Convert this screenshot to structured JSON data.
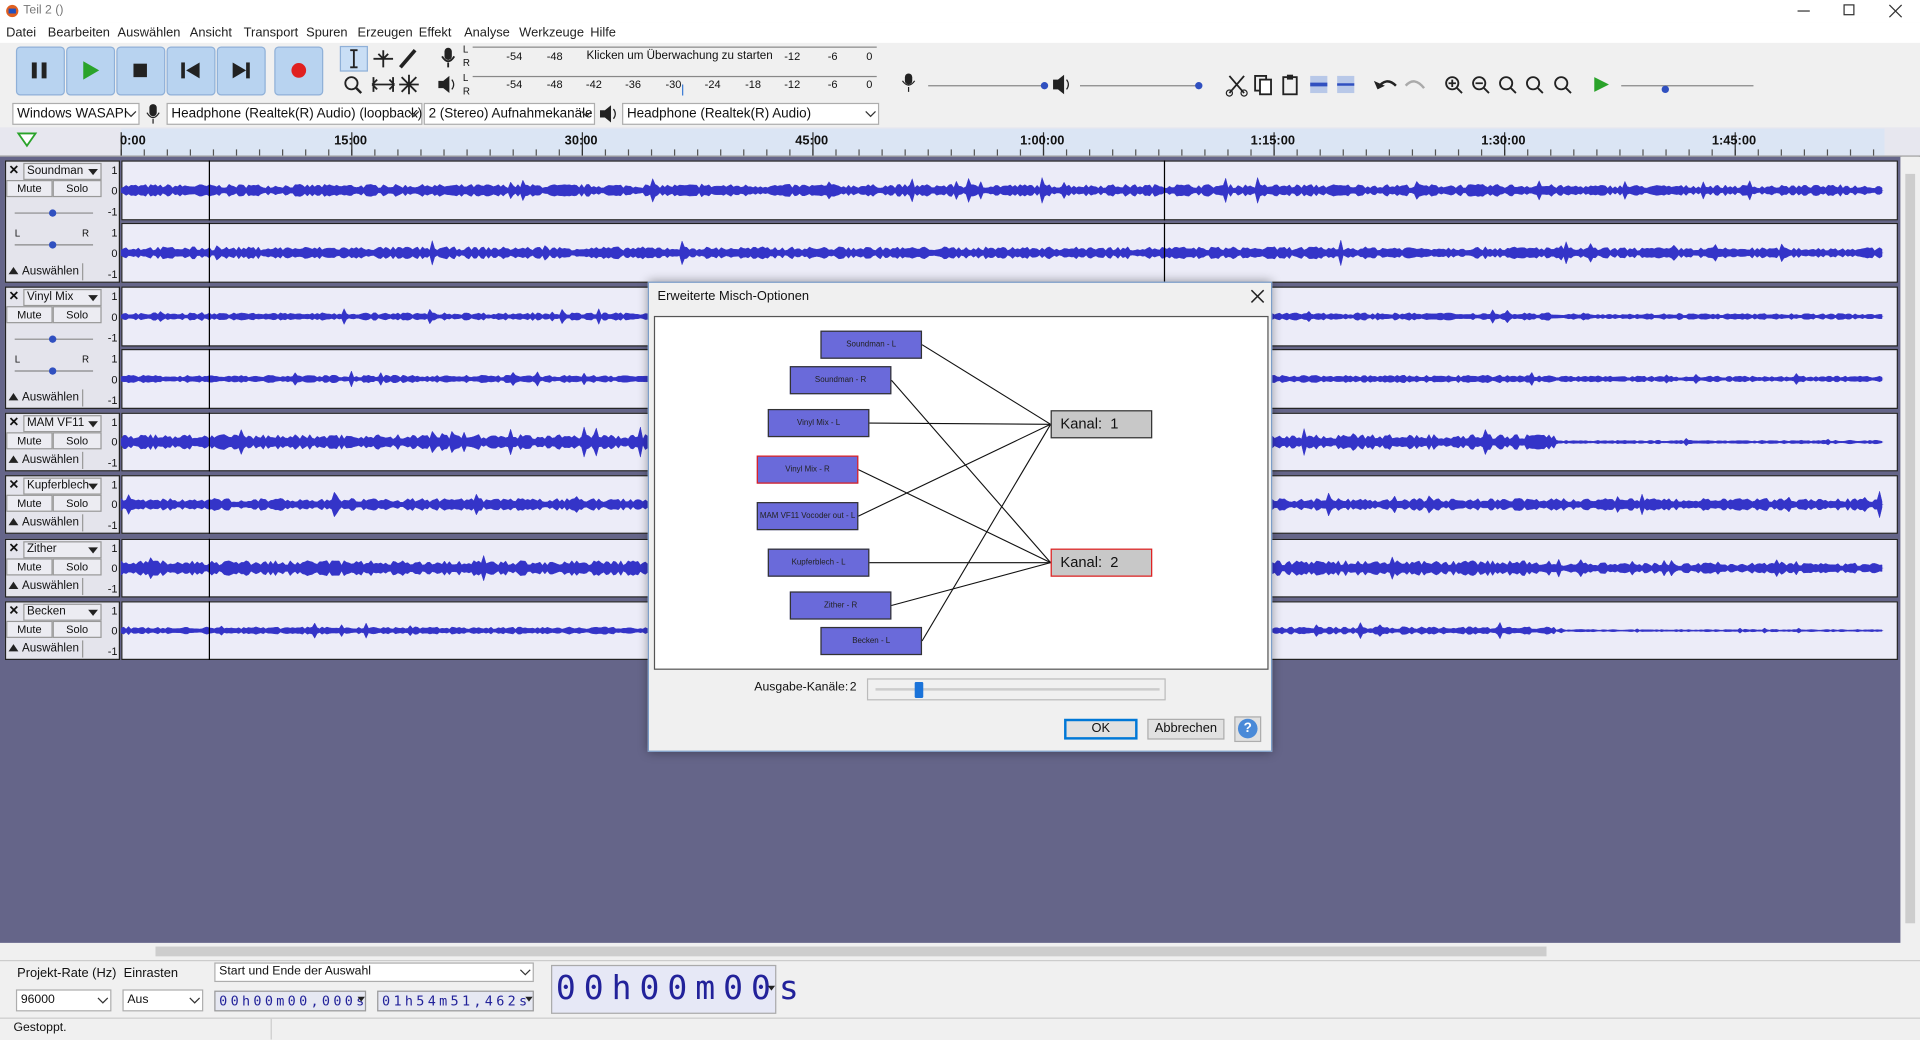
{
  "window": {
    "title": "Teil 2 ()"
  },
  "menu": [
    "Datei",
    "Bearbeiten",
    "Auswählen",
    "Ansicht",
    "Transport",
    "Spuren",
    "Erzeugen",
    "Effekt",
    "Analyse",
    "Werkzeuge",
    "Hilfe"
  ],
  "meters": {
    "channel_labels": [
      "L",
      "R"
    ],
    "record_scale": [
      "-54",
      "-48",
      "-12",
      "-6",
      "0"
    ],
    "record_prompt": "Klicken um Überwachung zu starten",
    "playback_scale": [
      "-54",
      "-48",
      "-42",
      "-36",
      "-30",
      "-24",
      "-18",
      "-12",
      "-6",
      "0"
    ]
  },
  "devices": {
    "host": "Windows WASAPI",
    "recording": "Headphone (Realtek(R) Audio) (loopback)",
    "channels": "2 (Stereo) Aufnahmekanäle",
    "playback": "Headphone (Realtek(R) Audio)"
  },
  "timeline": [
    "0:00",
    "15:00",
    "30:00",
    "45:00",
    "1:00:00",
    "1:15:00",
    "1:30:00",
    "1:45:00"
  ],
  "track_labels": {
    "mute": "Mute",
    "solo": "Solo",
    "select": "Auswählen",
    "scale": [
      "1",
      "0",
      "-1"
    ],
    "pan": [
      "L",
      "R"
    ]
  },
  "tracks": [
    {
      "name": "Soundman",
      "stereo": true
    },
    {
      "name": "Vinyl Mix",
      "stereo": true
    },
    {
      "name": "MAM VF11",
      "stereo": false
    },
    {
      "name": "Kupferblech",
      "stereo": false
    },
    {
      "name": "Zither",
      "stereo": false
    },
    {
      "name": "Becken",
      "stereo": false
    }
  ],
  "dialog": {
    "title": "Erweiterte Misch-Optionen",
    "inputs": [
      {
        "label": "Soundman - L",
        "highlighted": false
      },
      {
        "label": "Soundman - R",
        "highlighted": false
      },
      {
        "label": "Vinyl Mix - L",
        "highlighted": false
      },
      {
        "label": "Vinyl Mix - R",
        "highlighted": true
      },
      {
        "label": "MAM VF11 Vocoder out - L",
        "highlighted": false
      },
      {
        "label": "Kupferblech - L",
        "highlighted": false
      },
      {
        "label": "Zither - R",
        "highlighted": false
      },
      {
        "label": "Becken - L",
        "highlighted": false
      }
    ],
    "outputs": [
      {
        "label": "Kanal:  1",
        "highlighted": false
      },
      {
        "label": "Kanal:  2",
        "highlighted": true
      }
    ],
    "channels_label": "Ausgabe-Kanäle:",
    "channels_value": "2",
    "ok": "OK",
    "cancel": "Abbrechen",
    "help": "?"
  },
  "selection_bar": {
    "rate_label": "Projekt-Rate (Hz)",
    "rate": "96000",
    "snap_label": "Einrasten",
    "snap": "Aus",
    "mode": "Start und Ende der Auswahl",
    "start": "00h00m00,000s",
    "end": "01h54m51,462s",
    "position": "00h00m00s"
  },
  "status": "Gestoppt."
}
